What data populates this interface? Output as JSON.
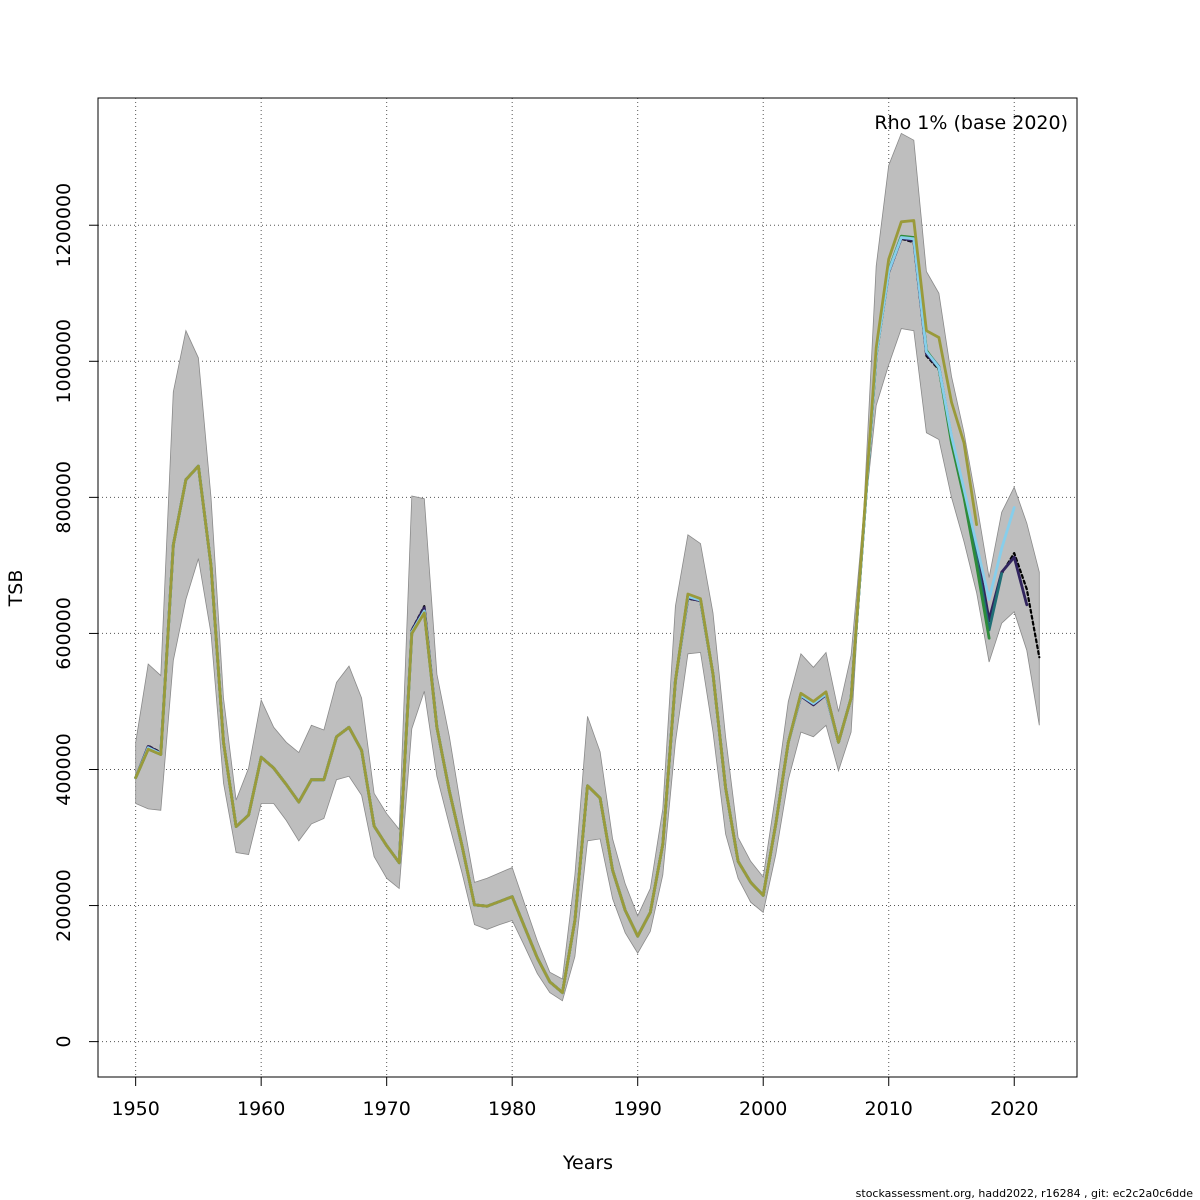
{
  "chart_data": {
    "type": "line",
    "title": "",
    "annotation": "Rho 1% (base 2020)",
    "xlabel": "Years",
    "ylabel": "TSB",
    "footer": "stockassessment.org, hadd2022, r16284 , git: ec2c2a0c6dde",
    "xlim": [
      1947,
      2025
    ],
    "ylim": [
      -52000,
      1387000
    ],
    "x_ticks": [
      1950,
      1960,
      1970,
      1980,
      1990,
      2000,
      2010,
      2020
    ],
    "y_ticks": [
      0,
      200000,
      400000,
      600000,
      800000,
      1000000,
      1200000
    ],
    "grid": true,
    "band_color": "#bebebe",
    "band": {
      "x": [
        1950,
        1951,
        1952,
        1953,
        1954,
        1955,
        1956,
        1957,
        1958,
        1959,
        1960,
        1961,
        1962,
        1963,
        1964,
        1965,
        1966,
        1967,
        1968,
        1969,
        1970,
        1971,
        1972,
        1973,
        1974,
        1975,
        1976,
        1977,
        1978,
        1979,
        1980,
        1981,
        1982,
        1983,
        1984,
        1985,
        1986,
        1987,
        1988,
        1989,
        1990,
        1991,
        1992,
        1993,
        1994,
        1995,
        1996,
        1997,
        1998,
        1999,
        2000,
        2001,
        2002,
        2003,
        2004,
        2005,
        2006,
        2007,
        2008,
        2009,
        2010,
        2011,
        2012,
        2013,
        2014,
        2015,
        2016,
        2017,
        2018,
        2019,
        2020,
        2021,
        2022
      ],
      "lower": [
        350000,
        342000,
        340000,
        560000,
        650000,
        710000,
        600000,
        380000,
        278000,
        275000,
        350000,
        350000,
        325000,
        295000,
        320000,
        328000,
        385000,
        390000,
        362000,
        272000,
        240000,
        225000,
        460000,
        515000,
        390000,
        318000,
        248000,
        172000,
        165000,
        172000,
        178000,
        140000,
        100000,
        72000,
        60000,
        125000,
        295000,
        298000,
        210000,
        160000,
        130000,
        162000,
        245000,
        440000,
        570000,
        572000,
        455000,
        305000,
        240000,
        205000,
        190000,
        275000,
        385000,
        455000,
        448000,
        465000,
        398000,
        455000,
        760000,
        935000,
        995000,
        1048000,
        1045000,
        895000,
        885000,
        800000,
        735000,
        660000,
        558000,
        615000,
        632000,
        575000,
        465000
      ],
      "upper": [
        440000,
        555000,
        538000,
        955000,
        1045000,
        1005000,
        800000,
        505000,
        355000,
        402000,
        502000,
        462000,
        440000,
        425000,
        465000,
        458000,
        528000,
        552000,
        505000,
        365000,
        335000,
        312000,
        802000,
        798000,
        540000,
        448000,
        335000,
        234000,
        240000,
        248000,
        256000,
        202000,
        148000,
        102000,
        92000,
        245000,
        478000,
        426000,
        298000,
        232000,
        185000,
        225000,
        342000,
        640000,
        745000,
        732000,
        630000,
        448000,
        300000,
        265000,
        242000,
        365000,
        500000,
        570000,
        550000,
        572000,
        485000,
        568000,
        775000,
        1140000,
        1288000,
        1335000,
        1325000,
        1132000,
        1100000,
        978000,
        895000,
        792000,
        682000,
        778000,
        815000,
        762000,
        690000
      ]
    },
    "series": [
      {
        "color": "#000000",
        "dashed": true,
        "x": [
          1950,
          1951,
          1952,
          1953,
          1954,
          1955,
          1956,
          1957,
          1958,
          1959,
          1960,
          1961,
          1962,
          1963,
          1964,
          1965,
          1966,
          1967,
          1968,
          1969,
          1970,
          1971,
          1972,
          1973,
          1974,
          1975,
          1976,
          1977,
          1978,
          1979,
          1980,
          1981,
          1982,
          1983,
          1984,
          1985,
          1986,
          1987,
          1988,
          1989,
          1990,
          1991,
          1992,
          1993,
          1994,
          1995,
          1996,
          1997,
          1998,
          1999,
          2000,
          2001,
          2002,
          2003,
          2004,
          2005,
          2006,
          2007,
          2008,
          2009,
          2010,
          2011,
          2012,
          2013,
          2014,
          2015,
          2016,
          2017,
          2018,
          2019,
          2020,
          2021,
          2022
        ],
        "y": [
          388000,
          435000,
          425000,
          730000,
          826000,
          846000,
          700000,
          440000,
          316000,
          333000,
          418000,
          402000,
          378000,
          352000,
          385000,
          385000,
          448000,
          462000,
          428000,
          317000,
          288000,
          263000,
          605000,
          640000,
          462000,
          368000,
          288000,
          201000,
          199000,
          206000,
          213000,
          168000,
          123000,
          88000,
          72000,
          178000,
          376000,
          358000,
          252000,
          193000,
          155000,
          190000,
          290000,
          530000,
          651000,
          648000,
          540000,
          373000,
          265000,
          234000,
          215000,
          320000,
          440000,
          508000,
          495000,
          510000,
          440000,
          505000,
          755000,
          1010000,
          1130000,
          1180000,
          1175000,
          1008000,
          988000,
          888000,
          808000,
          720000,
          618000,
          688000,
          718000,
          665000,
          565000
        ]
      },
      {
        "color": "#31245e",
        "dashed": false,
        "x": [
          1950,
          1951,
          1952,
          1953,
          1954,
          1955,
          1956,
          1957,
          1958,
          1959,
          1960,
          1961,
          1962,
          1963,
          1964,
          1965,
          1966,
          1967,
          1968,
          1969,
          1970,
          1971,
          1972,
          1973,
          1974,
          1975,
          1976,
          1977,
          1978,
          1979,
          1980,
          1981,
          1982,
          1983,
          1984,
          1985,
          1986,
          1987,
          1988,
          1989,
          1990,
          1991,
          1992,
          1993,
          1994,
          1995,
          1996,
          1997,
          1998,
          1999,
          2000,
          2001,
          2002,
          2003,
          2004,
          2005,
          2006,
          2007,
          2008,
          2009,
          2010,
          2011,
          2012,
          2013,
          2014,
          2015,
          2016,
          2017,
          2018,
          2019,
          2020,
          2021
        ],
        "y": [
          388000,
          434000,
          424000,
          730000,
          826000,
          846000,
          700000,
          440000,
          316000,
          333000,
          418000,
          402000,
          378000,
          352000,
          385000,
          385000,
          448000,
          462000,
          428000,
          317000,
          288000,
          263000,
          604000,
          638000,
          462000,
          368000,
          288000,
          201000,
          199000,
          206000,
          213000,
          168000,
          123000,
          88000,
          72000,
          178000,
          376000,
          358000,
          252000,
          193000,
          155000,
          190000,
          290000,
          530000,
          652000,
          648000,
          540000,
          373000,
          265000,
          234000,
          215000,
          320000,
          440000,
          508000,
          495000,
          510000,
          440000,
          505000,
          755000,
          1010000,
          1131000,
          1181000,
          1177000,
          1011000,
          990000,
          888000,
          808000,
          722000,
          620000,
          690000,
          712000,
          642000
        ]
      },
      {
        "color": "#87ceeb",
        "dashed": false,
        "x": [
          1950,
          1951,
          1952,
          1953,
          1954,
          1955,
          1956,
          1957,
          1958,
          1959,
          1960,
          1961,
          1962,
          1963,
          1964,
          1965,
          1966,
          1967,
          1968,
          1969,
          1970,
          1971,
          1972,
          1973,
          1974,
          1975,
          1976,
          1977,
          1978,
          1979,
          1980,
          1981,
          1982,
          1983,
          1984,
          1985,
          1986,
          1987,
          1988,
          1989,
          1990,
          1991,
          1992,
          1993,
          1994,
          1995,
          1996,
          1997,
          1998,
          1999,
          2000,
          2001,
          2002,
          2003,
          2004,
          2005,
          2006,
          2007,
          2008,
          2009,
          2010,
          2011,
          2012,
          2013,
          2014,
          2015,
          2016,
          2017,
          2018,
          2019,
          2020
        ],
        "y": [
          388000,
          432000,
          423000,
          730000,
          826000,
          846000,
          700000,
          440000,
          316000,
          333000,
          418000,
          402000,
          378000,
          352000,
          385000,
          385000,
          448000,
          462000,
          428000,
          317000,
          288000,
          263000,
          602000,
          633000,
          462000,
          368000,
          288000,
          201000,
          199000,
          206000,
          213000,
          168000,
          123000,
          88000,
          72000,
          178000,
          376000,
          358000,
          252000,
          193000,
          155000,
          190000,
          290000,
          530000,
          654000,
          649000,
          540000,
          373000,
          265000,
          234000,
          215000,
          320000,
          440000,
          509000,
          497000,
          511000,
          440000,
          505000,
          755000,
          1010000,
          1132000,
          1182000,
          1180000,
          1014000,
          991000,
          890000,
          812000,
          730000,
          650000,
          725000,
          785000
        ]
      },
      {
        "color": "#1f6e75",
        "dashed": false,
        "x": [
          1950,
          1951,
          1952,
          1953,
          1954,
          1955,
          1956,
          1957,
          1958,
          1959,
          1960,
          1961,
          1962,
          1963,
          1964,
          1965,
          1966,
          1967,
          1968,
          1969,
          1970,
          1971,
          1972,
          1973,
          1974,
          1975,
          1976,
          1977,
          1978,
          1979,
          1980,
          1981,
          1982,
          1983,
          1984,
          1985,
          1986,
          1987,
          1988,
          1989,
          1990,
          1991,
          1992,
          1993,
          1994,
          1995,
          1996,
          1997,
          1998,
          1999,
          2000,
          2001,
          2002,
          2003,
          2004,
          2005,
          2006,
          2007,
          2008,
          2009,
          2010,
          2011,
          2012,
          2013,
          2014,
          2015,
          2016,
          2017,
          2018,
          2019
        ],
        "y": [
          388000,
          431000,
          423000,
          730000,
          826000,
          846000,
          700000,
          440000,
          316000,
          333000,
          418000,
          402000,
          378000,
          352000,
          385000,
          385000,
          448000,
          462000,
          428000,
          317000,
          288000,
          263000,
          601000,
          632000,
          462000,
          368000,
          288000,
          201000,
          199000,
          206000,
          213000,
          168000,
          123000,
          88000,
          72000,
          178000,
          376000,
          358000,
          252000,
          193000,
          155000,
          190000,
          290000,
          530000,
          655000,
          649000,
          540000,
          373000,
          265000,
          234000,
          215000,
          320000,
          440000,
          510000,
          498000,
          512000,
          440000,
          505000,
          755000,
          1010000,
          1133000,
          1183000,
          1181000,
          1015000,
          992000,
          885000,
          805000,
          710000,
          605000,
          688000
        ]
      },
      {
        "color": "#2e8b3a",
        "dashed": false,
        "x": [
          1950,
          1951,
          1952,
          1953,
          1954,
          1955,
          1956,
          1957,
          1958,
          1959,
          1960,
          1961,
          1962,
          1963,
          1964,
          1965,
          1966,
          1967,
          1968,
          1969,
          1970,
          1971,
          1972,
          1973,
          1974,
          1975,
          1976,
          1977,
          1978,
          1979,
          1980,
          1981,
          1982,
          1983,
          1984,
          1985,
          1986,
          1987,
          1988,
          1989,
          1990,
          1991,
          1992,
          1993,
          1994,
          1995,
          1996,
          1997,
          1998,
          1999,
          2000,
          2001,
          2002,
          2003,
          2004,
          2005,
          2006,
          2007,
          2008,
          2009,
          2010,
          2011,
          2012,
          2013,
          2014,
          2015,
          2016,
          2017,
          2018
        ],
        "y": [
          388000,
          430000,
          422000,
          730000,
          826000,
          846000,
          700000,
          440000,
          316000,
          333000,
          418000,
          402000,
          378000,
          352000,
          385000,
          385000,
          448000,
          462000,
          428000,
          317000,
          288000,
          263000,
          600000,
          631000,
          462000,
          368000,
          288000,
          201000,
          199000,
          206000,
          213000,
          168000,
          123000,
          88000,
          72000,
          178000,
          376000,
          358000,
          252000,
          193000,
          155000,
          190000,
          290000,
          530000,
          656000,
          650000,
          540000,
          373000,
          265000,
          234000,
          215000,
          320000,
          440000,
          511000,
          499000,
          513000,
          440000,
          505000,
          755000,
          1010000,
          1133000,
          1184000,
          1182000,
          1016000,
          990000,
          880000,
          800000,
          700000,
          593000
        ]
      },
      {
        "color": "#9a9a3a",
        "dashed": false,
        "x": [
          1950,
          1951,
          1952,
          1953,
          1954,
          1955,
          1956,
          1957,
          1958,
          1959,
          1960,
          1961,
          1962,
          1963,
          1964,
          1965,
          1966,
          1967,
          1968,
          1969,
          1970,
          1971,
          1972,
          1973,
          1974,
          1975,
          1976,
          1977,
          1978,
          1979,
          1980,
          1981,
          1982,
          1983,
          1984,
          1985,
          1986,
          1987,
          1988,
          1989,
          1990,
          1991,
          1992,
          1993,
          1994,
          1995,
          1996,
          1997,
          1998,
          1999,
          2000,
          2001,
          2002,
          2003,
          2004,
          2005,
          2006,
          2007,
          2008,
          2009,
          2010,
          2011,
          2012,
          2013,
          2014,
          2015,
          2016,
          2017
        ],
        "y": [
          388000,
          430000,
          422000,
          730000,
          826000,
          846000,
          700000,
          440000,
          316000,
          333000,
          418000,
          402000,
          378000,
          352000,
          385000,
          385000,
          448000,
          462000,
          428000,
          317000,
          288000,
          263000,
          600000,
          630000,
          462000,
          368000,
          288000,
          201000,
          199000,
          206000,
          213000,
          168000,
          123000,
          88000,
          72000,
          178000,
          376000,
          358000,
          252000,
          193000,
          155000,
          190000,
          290000,
          530000,
          658000,
          651000,
          540000,
          373000,
          265000,
          234000,
          215000,
          320000,
          440000,
          512000,
          500000,
          514000,
          440000,
          505000,
          760000,
          1020000,
          1150000,
          1205000,
          1207000,
          1045000,
          1035000,
          940000,
          880000,
          760000
        ]
      }
    ]
  }
}
